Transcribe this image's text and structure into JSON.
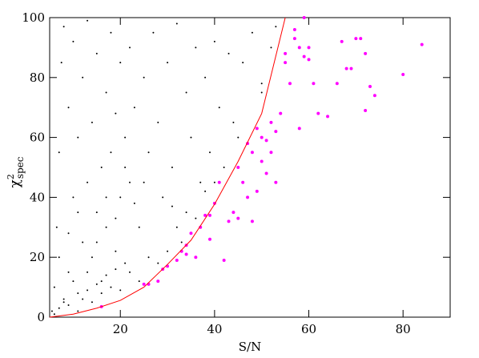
{
  "chart_data": {
    "type": "scatter",
    "xlabel": "S/N",
    "ylabel": {
      "symbol": "χ",
      "sup": "2",
      "sub": "spec"
    },
    "xlim": [
      5,
      90
    ],
    "ylim": [
      0,
      100
    ],
    "xticks": [
      20,
      40,
      60,
      80
    ],
    "yticks": [
      0,
      20,
      40,
      60,
      80,
      100
    ],
    "series": [
      {
        "color": "#000000",
        "x": [
          5.5,
          6,
          6.5,
          7,
          7.5,
          8,
          8,
          9,
          9,
          10,
          10,
          11,
          11,
          12,
          12,
          13,
          13,
          14,
          14,
          15,
          15,
          16,
          16,
          17,
          17,
          18,
          18,
          19,
          19,
          20,
          20,
          21,
          21,
          22,
          22,
          23,
          24,
          25,
          26,
          27,
          28,
          29,
          30,
          31,
          32,
          33,
          34,
          35,
          36,
          37,
          38,
          39,
          40,
          41,
          42,
          43,
          44,
          46,
          48,
          50,
          52,
          53,
          6,
          7,
          8,
          9,
          10,
          11,
          12,
          13,
          14,
          15,
          16,
          17,
          18,
          19,
          20,
          22,
          24,
          26,
          28,
          30,
          32,
          34,
          36,
          38,
          40,
          45,
          50,
          7,
          9,
          11,
          13,
          15,
          17,
          19,
          21,
          23,
          25,
          31
        ],
        "values": [
          2,
          10,
          30,
          55,
          85,
          5,
          97,
          15,
          70,
          40,
          92,
          8,
          60,
          25,
          80,
          45,
          99,
          20,
          65,
          35,
          88,
          12,
          50,
          30,
          75,
          55,
          95,
          22,
          68,
          40,
          85,
          18,
          60,
          45,
          90,
          70,
          30,
          80,
          55,
          95,
          65,
          40,
          85,
          50,
          98,
          25,
          75,
          60,
          90,
          45,
          80,
          55,
          92,
          70,
          50,
          88,
          65,
          85,
          95,
          78,
          90,
          97,
          1,
          3,
          6,
          4,
          12,
          2,
          6,
          9,
          5,
          11,
          8,
          14,
          10,
          16,
          9,
          15,
          12,
          20,
          18,
          22,
          30,
          35,
          33,
          42,
          45,
          60,
          75,
          20,
          28,
          35,
          15,
          25,
          40,
          33,
          50,
          38,
          45,
          37
        ]
      },
      {
        "color": "#ff00ff",
        "x": [
          16,
          25,
          26,
          28,
          29,
          30,
          32,
          33,
          34,
          34,
          35,
          36,
          37,
          38,
          39,
          39,
          40,
          41,
          42,
          43,
          44,
          45,
          45,
          46,
          47,
          47,
          48,
          48,
          49,
          49,
          50,
          50,
          51,
          51,
          52,
          52,
          53,
          53,
          54,
          55,
          55,
          56,
          57,
          57,
          58,
          58,
          59,
          59,
          60,
          60,
          61,
          62,
          64,
          66,
          67,
          68,
          69,
          70,
          71,
          72,
          72,
          73,
          74,
          80,
          84
        ],
        "values": [
          3.5,
          11,
          11,
          12,
          16,
          17,
          19,
          22,
          21,
          24,
          28,
          20,
          30,
          34,
          34,
          26,
          38,
          45,
          19,
          32,
          35,
          33,
          50,
          45,
          40,
          58,
          32,
          55,
          42,
          63,
          52,
          60,
          59,
          48,
          55,
          65,
          62,
          45,
          68,
          85,
          88,
          78,
          96,
          93,
          90,
          63,
          100,
          87,
          90,
          86,
          78,
          68,
          67,
          78,
          92,
          83,
          83,
          93,
          93,
          88,
          69,
          77,
          74,
          81,
          91
        ]
      },
      {
        "type": "line",
        "color": "#ff0000",
        "x": [
          5,
          10,
          15,
          20,
          25,
          30,
          35,
          40,
          45,
          50,
          55
        ],
        "values": [
          0,
          1,
          3,
          5.6,
          10,
          17.6,
          25.7,
          37.7,
          52,
          68,
          100
        ]
      }
    ]
  }
}
